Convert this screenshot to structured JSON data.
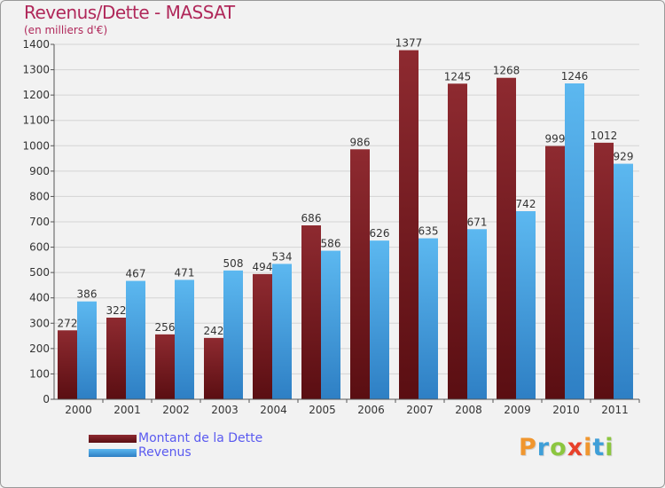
{
  "header": {
    "title": "Revenus/Dette - MASSAT",
    "subtitle": "(en milliers d'€)"
  },
  "logo": {
    "letters": [
      "P",
      "r",
      "o",
      "x",
      "i",
      "t",
      "i"
    ],
    "colors": [
      "#f0962e",
      "#3f9fd8",
      "#8cc63f",
      "#e8402a",
      "#f0962e",
      "#3f9fd8",
      "#8cc63f"
    ]
  },
  "chart_data": {
    "type": "bar",
    "title": "Revenus/Dette - MASSAT",
    "subtitle": "(en milliers d'€)",
    "categories": [
      "2000",
      "2001",
      "2002",
      "2003",
      "2004",
      "2005",
      "2006",
      "2007",
      "2008",
      "2009",
      "2010",
      "2011"
    ],
    "series": [
      {
        "name": "Montant de la Dette",
        "color": "#7a1c22",
        "values": [
          272,
          322,
          256,
          242,
          494,
          686,
          986,
          1377,
          1245,
          1268,
          999,
          1012
        ]
      },
      {
        "name": "Revenus",
        "color": "#4aa8e8",
        "values": [
          386,
          467,
          471,
          508,
          534,
          586,
          626,
          635,
          671,
          742,
          1246,
          929
        ]
      }
    ],
    "ylim": [
      0,
      1400
    ],
    "yticks": [
      0,
      100,
      200,
      300,
      400,
      500,
      600,
      700,
      800,
      900,
      1000,
      1100,
      1200,
      1300,
      1400
    ],
    "grid": true,
    "legend_position": "bottom-left",
    "data_labels": true
  }
}
